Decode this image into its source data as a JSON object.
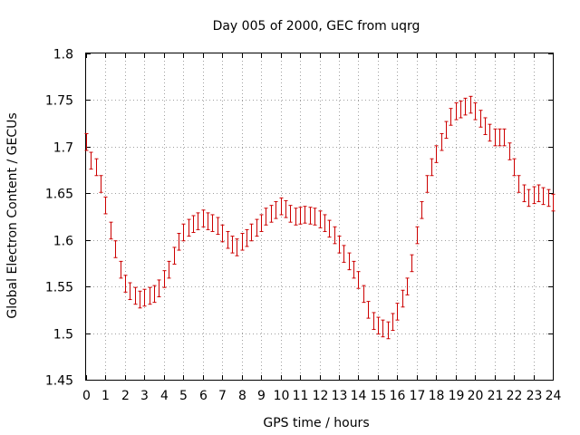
{
  "chart_data": {
    "type": "scatter",
    "title": "Day 005 of 2000, GEC from uqrg",
    "xlabel": "GPS time / hours",
    "ylabel": "Global Electron Content / GECUs",
    "xlim": [
      0,
      24
    ],
    "ylim": [
      1.45,
      1.8
    ],
    "xticks": [
      0,
      1,
      2,
      3,
      4,
      5,
      6,
      7,
      8,
      9,
      10,
      11,
      12,
      13,
      14,
      15,
      16,
      17,
      18,
      19,
      20,
      21,
      22,
      23,
      24
    ],
    "yticks": [
      1.45,
      1.5,
      1.55,
      1.6,
      1.65,
      1.7,
      1.75,
      1.8
    ],
    "ytick_labels": [
      "1.45",
      "1.5",
      "1.55",
      "1.6",
      "1.65",
      "1.7",
      "1.75",
      "1.8"
    ],
    "grid": true,
    "marker_color": "#cc0000",
    "error": 0.009,
    "series": [
      {
        "name": "GEC",
        "x": [
          0,
          0.25,
          0.5,
          0.75,
          1,
          1.25,
          1.5,
          1.75,
          2,
          2.25,
          2.5,
          2.75,
          3,
          3.25,
          3.5,
          3.75,
          4,
          4.25,
          4.5,
          4.75,
          5,
          5.25,
          5.5,
          5.75,
          6,
          6.25,
          6.5,
          6.75,
          7,
          7.25,
          7.5,
          7.75,
          8,
          8.25,
          8.5,
          8.75,
          9,
          9.25,
          9.5,
          9.75,
          10,
          10.25,
          10.5,
          10.75,
          11,
          11.25,
          11.5,
          11.75,
          12,
          12.25,
          12.5,
          12.75,
          13,
          13.25,
          13.5,
          13.75,
          14,
          14.25,
          14.5,
          14.75,
          15,
          15.25,
          15.5,
          15.75,
          16,
          16.25,
          16.5,
          16.75,
          17,
          17.25,
          17.5,
          17.75,
          18,
          18.25,
          18.5,
          18.75,
          19,
          19.25,
          19.5,
          19.75,
          20,
          20.25,
          20.5,
          20.75,
          21,
          21.25,
          21.5,
          21.75,
          22,
          22.25,
          22.5,
          22.75,
          23,
          23.25,
          23.5,
          23.75,
          24
        ],
        "y": [
          1.705,
          1.685,
          1.678,
          1.66,
          1.637,
          1.61,
          1.59,
          1.568,
          1.553,
          1.545,
          1.54,
          1.536,
          1.538,
          1.54,
          1.542,
          1.548,
          1.558,
          1.568,
          1.583,
          1.598,
          1.608,
          1.613,
          1.617,
          1.62,
          1.623,
          1.62,
          1.618,
          1.615,
          1.607,
          1.6,
          1.595,
          1.592,
          1.598,
          1.602,
          1.608,
          1.613,
          1.618,
          1.625,
          1.628,
          1.632,
          1.636,
          1.633,
          1.628,
          1.625,
          1.626,
          1.627,
          1.626,
          1.625,
          1.622,
          1.618,
          1.612,
          1.605,
          1.595,
          1.585,
          1.577,
          1.568,
          1.557,
          1.542,
          1.525,
          1.513,
          1.508,
          1.505,
          1.503,
          1.512,
          1.523,
          1.537,
          1.55,
          1.575,
          1.605,
          1.632,
          1.66,
          1.678,
          1.692,
          1.705,
          1.718,
          1.732,
          1.738,
          1.74,
          1.743,
          1.745,
          1.738,
          1.73,
          1.722,
          1.715,
          1.71,
          1.71,
          1.71,
          1.695,
          1.678,
          1.66,
          1.65,
          1.645,
          1.648,
          1.65,
          1.647,
          1.645,
          1.64
        ]
      }
    ]
  }
}
